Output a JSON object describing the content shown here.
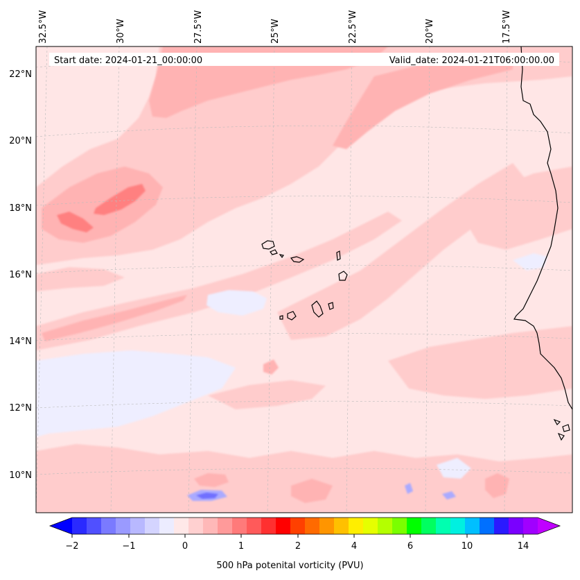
{
  "map": {
    "start_date": "Start date: 2024-01-21_00:00:00",
    "valid_date": "Valid_date: 2024-01-21T06:00:00.00",
    "lon_labels": [
      "32.5°W",
      "30°W",
      "27.5°W",
      "25°W",
      "22.5°W",
      "20°W",
      "17.5°W"
    ],
    "lat_labels": [
      "22°N",
      "20°N",
      "18°N",
      "16°N",
      "14°N",
      "12°N",
      "10°N"
    ],
    "colors": {
      "background": "#ffe6e6",
      "light_red": "#ffcccc",
      "mid_red": "#ffb3b3",
      "strong_red": "#ff8080",
      "light_blue": "#eeeeff",
      "mid_blue": "#aaaaff",
      "strong_blue": "#7070ff",
      "coastline": "#000000",
      "gridline": "#bbbbbb"
    }
  },
  "colorbar": {
    "label": "500 hPa potenital vorticity (PVU)",
    "ticks": [
      "−2",
      "−1",
      "0",
      "1",
      "2",
      "4",
      "6",
      "10",
      "14"
    ],
    "colors": [
      "#0000ff",
      "#2a2aff",
      "#5050ff",
      "#7a7aff",
      "#9a9aff",
      "#b8b8ff",
      "#d4d4ff",
      "#ececff",
      "#ffe8e8",
      "#ffd0d0",
      "#ffb8b8",
      "#ff9a9a",
      "#ff7a7a",
      "#ff5a5a",
      "#ff3030",
      "#ff0000",
      "#ff4000",
      "#ff6a00",
      "#ff9500",
      "#ffc000",
      "#ffee00",
      "#e6ff00",
      "#b4ff00",
      "#7aff00",
      "#00ff00",
      "#00ff60",
      "#00ffb0",
      "#00f0e0",
      "#00bfff",
      "#0070ff",
      "#2a1aff",
      "#7a00ff",
      "#a000ff",
      "#c000ff"
    ]
  }
}
